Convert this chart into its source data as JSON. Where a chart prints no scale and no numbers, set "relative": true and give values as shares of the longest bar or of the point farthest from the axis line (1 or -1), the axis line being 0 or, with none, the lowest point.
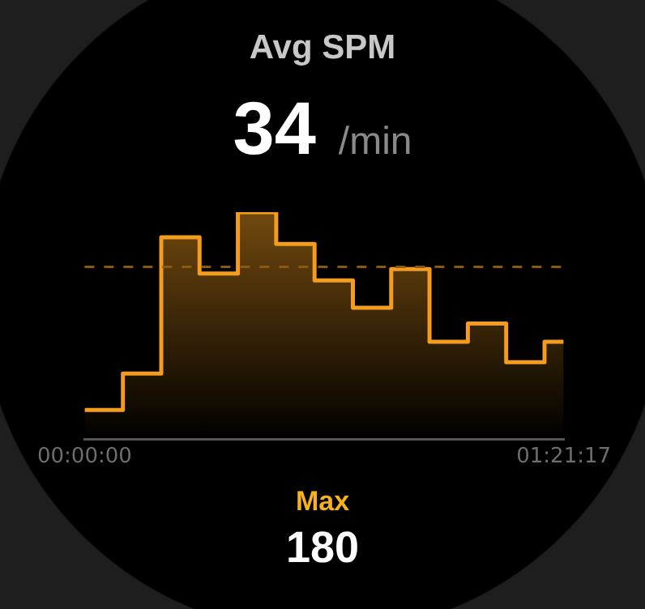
{
  "chart_data": {
    "type": "area",
    "title": "Avg SPM",
    "annotations": [
      "34",
      "/min",
      "Max",
      "180"
    ],
    "relative": true,
    "x": [
      0,
      0.1084,
      0.1084,
      0.2168,
      0.2168,
      0.3251,
      0.3251,
      0.4335,
      0.4335,
      0.5419,
      0.5419,
      0.6503,
      0.6503,
      0.7587,
      0.7587,
      0.867,
      0.867,
      0.9754,
      0.9754,
      1.0838,
      1.0838,
      1.1922,
      1.1922,
      1.3006,
      1.3006,
      1.3547
    ],
    "values": [
      0.13,
      0.13,
      0.29,
      0.29,
      0.89,
      0.89,
      0.73,
      0.73,
      1,
      1,
      0.86,
      0.86,
      0.7,
      0.7,
      0.58,
      0.58,
      0.75,
      0.75,
      0.43,
      0.43,
      0.51,
      0.51,
      0.34,
      0.34,
      0.43,
      0.43
    ],
    "color": "#f39c1e",
    "xlim": [
      0,
      1.3547
    ],
    "xticks": [
      {
        "value": 0,
        "label": "00:00:00"
      },
      {
        "value": 1.3547,
        "label": "01:21:17"
      }
    ],
    "ref_lines": [
      {
        "axis": "y",
        "value": 0.76,
        "color": "#8a5a14",
        "line_style": "dashed"
      }
    ]
  }
}
